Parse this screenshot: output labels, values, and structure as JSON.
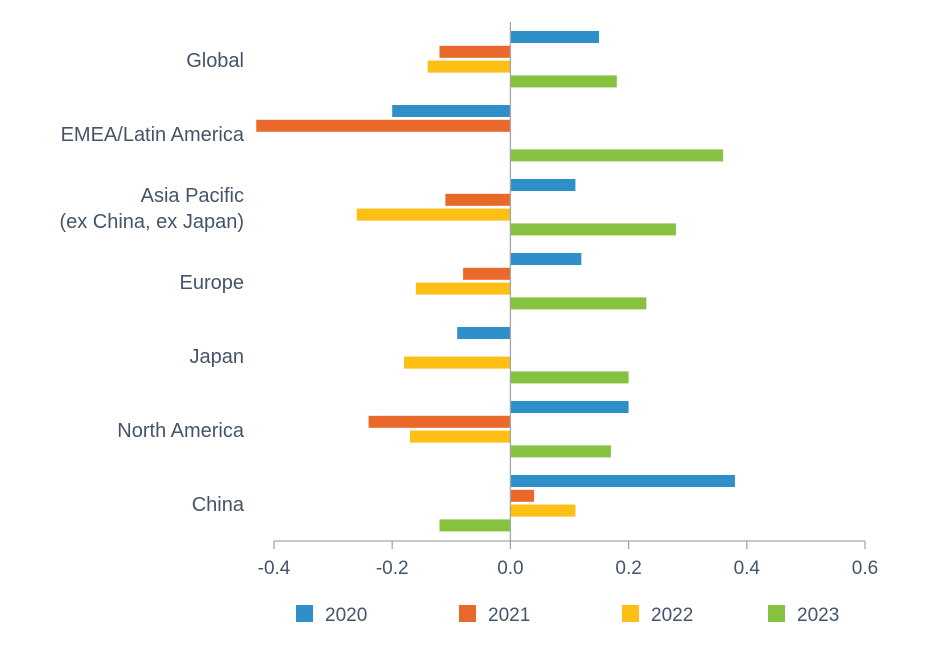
{
  "chart_data": {
    "type": "bar",
    "orientation": "horizontal",
    "categories": [
      [
        "Global"
      ],
      [
        "EMEA/Latin America"
      ],
      [
        "Asia Pacific",
        "(ex China, ex Japan)"
      ],
      [
        "Europe"
      ],
      [
        "Japan"
      ],
      [
        "North America"
      ],
      [
        "China"
      ]
    ],
    "series": [
      {
        "name": "2020",
        "color": "#2e8fc9",
        "values": [
          0.15,
          -0.2,
          0.11,
          0.12,
          -0.09,
          0.2,
          0.38
        ]
      },
      {
        "name": "2021",
        "color": "#e8692a",
        "values": [
          -0.12,
          -0.43,
          -0.11,
          -0.08,
          0.0,
          -0.24,
          0.04
        ]
      },
      {
        "name": "2022",
        "color": "#fbbf16",
        "values": [
          -0.14,
          0.0,
          -0.26,
          -0.16,
          -0.18,
          -0.17,
          0.11
        ]
      },
      {
        "name": "2023",
        "color": "#86c13f",
        "values": [
          0.18,
          0.36,
          0.28,
          0.23,
          0.2,
          0.17,
          -0.12
        ]
      }
    ],
    "xlim": [
      -0.4,
      0.6
    ],
    "xticks": [
      "-0.4",
      "-0.2",
      "0.0",
      "0.2",
      "0.4",
      "0.6"
    ],
    "axis_color": "#a6a6a6",
    "grid": false,
    "legend_position": "bottom"
  }
}
